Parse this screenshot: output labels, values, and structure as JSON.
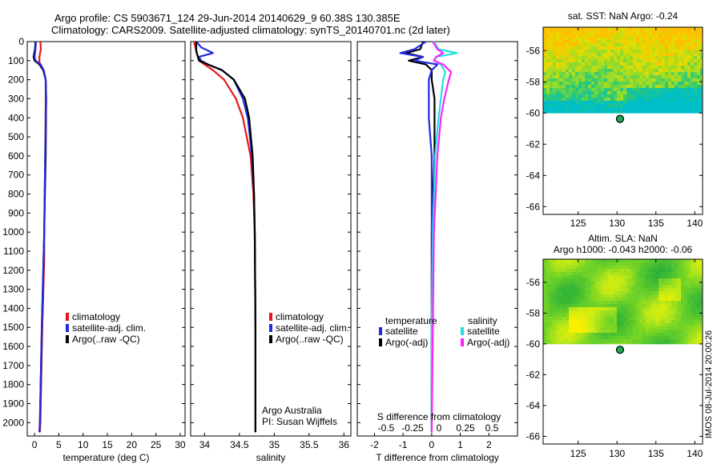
{
  "header": {
    "line1": "Argo profile: CS 5903671_124 29-Jun-2014 20140629_9 60.38S 130.385E",
    "line2": "Climatology: CARS2009. Satellite-adjusted climatology: synTS_20140701.nc (2d later)"
  },
  "colors": {
    "climatology": "#e8161b",
    "satellite": "#1f2be0",
    "argo": "#000000",
    "sal_satellite": "#22e0e0",
    "sal_argo": "#ff22ff"
  },
  "depth_axis": {
    "ticks": [
      0,
      100,
      200,
      300,
      400,
      500,
      600,
      700,
      800,
      900,
      1000,
      1100,
      1200,
      1300,
      1400,
      1500,
      1600,
      1700,
      1800,
      1900,
      2000
    ],
    "range": [
      0,
      2070
    ]
  },
  "chart_data": [
    {
      "type": "line",
      "name": "temperature",
      "xlabel": "temperature (deg C)",
      "xlim": [
        -1.5,
        31
      ],
      "xticks": [
        0,
        5,
        10,
        15,
        20,
        25,
        30
      ],
      "legend": [
        "climatology",
        "satellite-adj. clim.",
        "Argo(..raw -QC)"
      ],
      "legend_placement": "lower-center",
      "series": [
        {
          "key": "climatology",
          "depth": [
            0,
            40,
            80,
            110,
            130,
            160,
            200,
            300,
            600,
            1000,
            1150,
            1500,
            2000,
            2050
          ],
          "values": [
            1.2,
            1.3,
            1.0,
            1.0,
            1.5,
            2.0,
            2.3,
            2.3,
            2.2,
            2.0,
            2.0,
            1.6,
            1.2,
            1.1
          ]
        },
        {
          "key": "argo",
          "depth": [
            0,
            40,
            80,
            100,
            120,
            150,
            200,
            300,
            600,
            1000,
            1500,
            2000,
            2050
          ],
          "values": [
            0.2,
            0.1,
            -0.2,
            0.0,
            1.0,
            1.8,
            2.3,
            2.4,
            2.3,
            2.0,
            1.5,
            1.1,
            1.0
          ]
        },
        {
          "key": "satellite",
          "depth": [
            0,
            40,
            80,
            100,
            120,
            150,
            200,
            300,
            600,
            1000,
            1500,
            2000,
            2050
          ],
          "values": [
            0.3,
            0.2,
            0.0,
            0.2,
            1.2,
            1.9,
            2.3,
            2.4,
            2.2,
            2.0,
            1.5,
            1.1,
            1.0
          ]
        }
      ]
    },
    {
      "type": "line",
      "name": "salinity",
      "xlabel": "salinity",
      "xlim": [
        33.8,
        36.1
      ],
      "xticks": [
        34,
        34.5,
        35,
        35.5,
        36
      ],
      "legend": [
        "climatology",
        "satellite-adj. clim.",
        "Argo(..raw -QC)"
      ],
      "legend_placement": "lower-center",
      "annotation": [
        "Argo Australia",
        "PI: Susan Wijffels"
      ],
      "series": [
        {
          "key": "climatology",
          "depth": [
            0,
            50,
            100,
            120,
            150,
            200,
            300,
            400,
            600,
            800,
            1000,
            1500,
            2050
          ],
          "values": [
            33.85,
            33.88,
            33.92,
            34.0,
            34.12,
            34.28,
            34.45,
            34.55,
            34.66,
            34.7,
            34.72,
            34.73,
            34.73
          ]
        },
        {
          "key": "satellite",
          "depth": [
            0,
            30,
            60,
            80,
            100,
            120,
            150,
            200,
            300,
            400,
            600,
            800,
            1000,
            1500,
            2050
          ],
          "values": [
            33.88,
            33.95,
            34.12,
            33.92,
            33.95,
            34.05,
            34.25,
            34.42,
            34.55,
            34.62,
            34.68,
            34.71,
            34.72,
            34.73,
            34.73
          ]
        },
        {
          "key": "argo",
          "depth": [
            0,
            50,
            100,
            120,
            150,
            200,
            300,
            400,
            600,
            800,
            1000,
            1500,
            2050
          ],
          "values": [
            33.88,
            33.88,
            33.92,
            34.05,
            34.25,
            34.42,
            34.58,
            34.64,
            34.69,
            34.71,
            34.72,
            34.73,
            34.73
          ]
        }
      ]
    },
    {
      "type": "line",
      "name": "difference",
      "xlabel": "T difference from climatology",
      "top_label": "S difference from climatology",
      "xlim": [
        -2.6,
        3.0
      ],
      "xticks": [
        -2,
        -1,
        0,
        1,
        2
      ],
      "s_ticks": [
        "-0.5",
        "-0.25",
        "0",
        "0.25",
        "0.5"
      ],
      "s_scale": 4,
      "legend_temperature": {
        "heading": "temperature",
        "items": [
          "satellite",
          "Argo(-adj)"
        ]
      },
      "legend_salinity": {
        "heading": "salinity",
        "items": [
          "satellite",
          "Argo(-adj)"
        ]
      },
      "series": [
        {
          "key": "argo",
          "depth": [
            0,
            40,
            60,
            80,
            100,
            120,
            150,
            200,
            300,
            600,
            1000,
            1500,
            2000,
            2050
          ],
          "values": [
            -0.3,
            -0.4,
            -0.9,
            -0.3,
            -0.8,
            -0.2,
            0.0,
            0.0,
            0.1,
            0.1,
            0.0,
            0.0,
            0.0,
            0.0
          ]
        },
        {
          "key": "satellite",
          "depth": [
            0,
            40,
            60,
            80,
            100,
            120,
            150,
            200,
            400,
            600,
            1000,
            1500,
            2050
          ],
          "values": [
            -0.2,
            -0.6,
            -1.1,
            -0.3,
            -0.6,
            0.2,
            0.0,
            -0.1,
            -0.1,
            0.0,
            0.0,
            0.0,
            0.0
          ]
        },
        {
          "key": "sal_satellite",
          "depth": [
            0,
            40,
            60,
            80,
            100,
            120,
            160,
            200,
            300,
            400,
            600,
            1000,
            1500,
            2050
          ],
          "values": [
            0.02,
            0.06,
            0.22,
            0.04,
            0.02,
            0.08,
            0.12,
            0.1,
            0.08,
            0.06,
            0.03,
            0.01,
            0.0,
            0.0
          ]
        },
        {
          "key": "sal_argo",
          "depth": [
            0,
            40,
            60,
            80,
            100,
            120,
            160,
            200,
            300,
            400,
            600,
            1000,
            1500,
            2050
          ],
          "values": [
            0.01,
            0.05,
            0.1,
            0.04,
            0.02,
            0.1,
            0.17,
            0.15,
            0.11,
            0.08,
            0.05,
            0.02,
            0.01,
            0.0
          ]
        }
      ]
    },
    {
      "type": "heatmap",
      "name": "sst-map",
      "title": "sat. SST: NaN Argo: -0.24",
      "xlim": [
        120.5,
        141
      ],
      "ylim": [
        -66.5,
        -54.5
      ],
      "xticks": [
        125,
        130,
        135,
        140
      ],
      "yticks": [
        -56,
        -58,
        -60,
        -62,
        -64,
        -66
      ],
      "data_ylim": [
        -60,
        -54.5
      ],
      "palette": "sst",
      "argo_position": [
        130.385,
        -60.38
      ]
    },
    {
      "type": "heatmap",
      "name": "sla-map",
      "title": "Altim. SLA: NaN",
      "subtitle": "Argo h1000: -0.043 h2000: -0.06",
      "xlim": [
        120.5,
        141
      ],
      "ylim": [
        -66.5,
        -54.5
      ],
      "xticks": [
        125,
        130,
        135,
        140
      ],
      "yticks": [
        -56,
        -58,
        -60,
        -62,
        -64,
        -66
      ],
      "data_ylim": [
        -60,
        -54.5
      ],
      "palette": "sla",
      "argo_position": [
        130.385,
        -60.38
      ]
    }
  ],
  "stamp": "IMOS 08-Jul-2014 20:00:26"
}
